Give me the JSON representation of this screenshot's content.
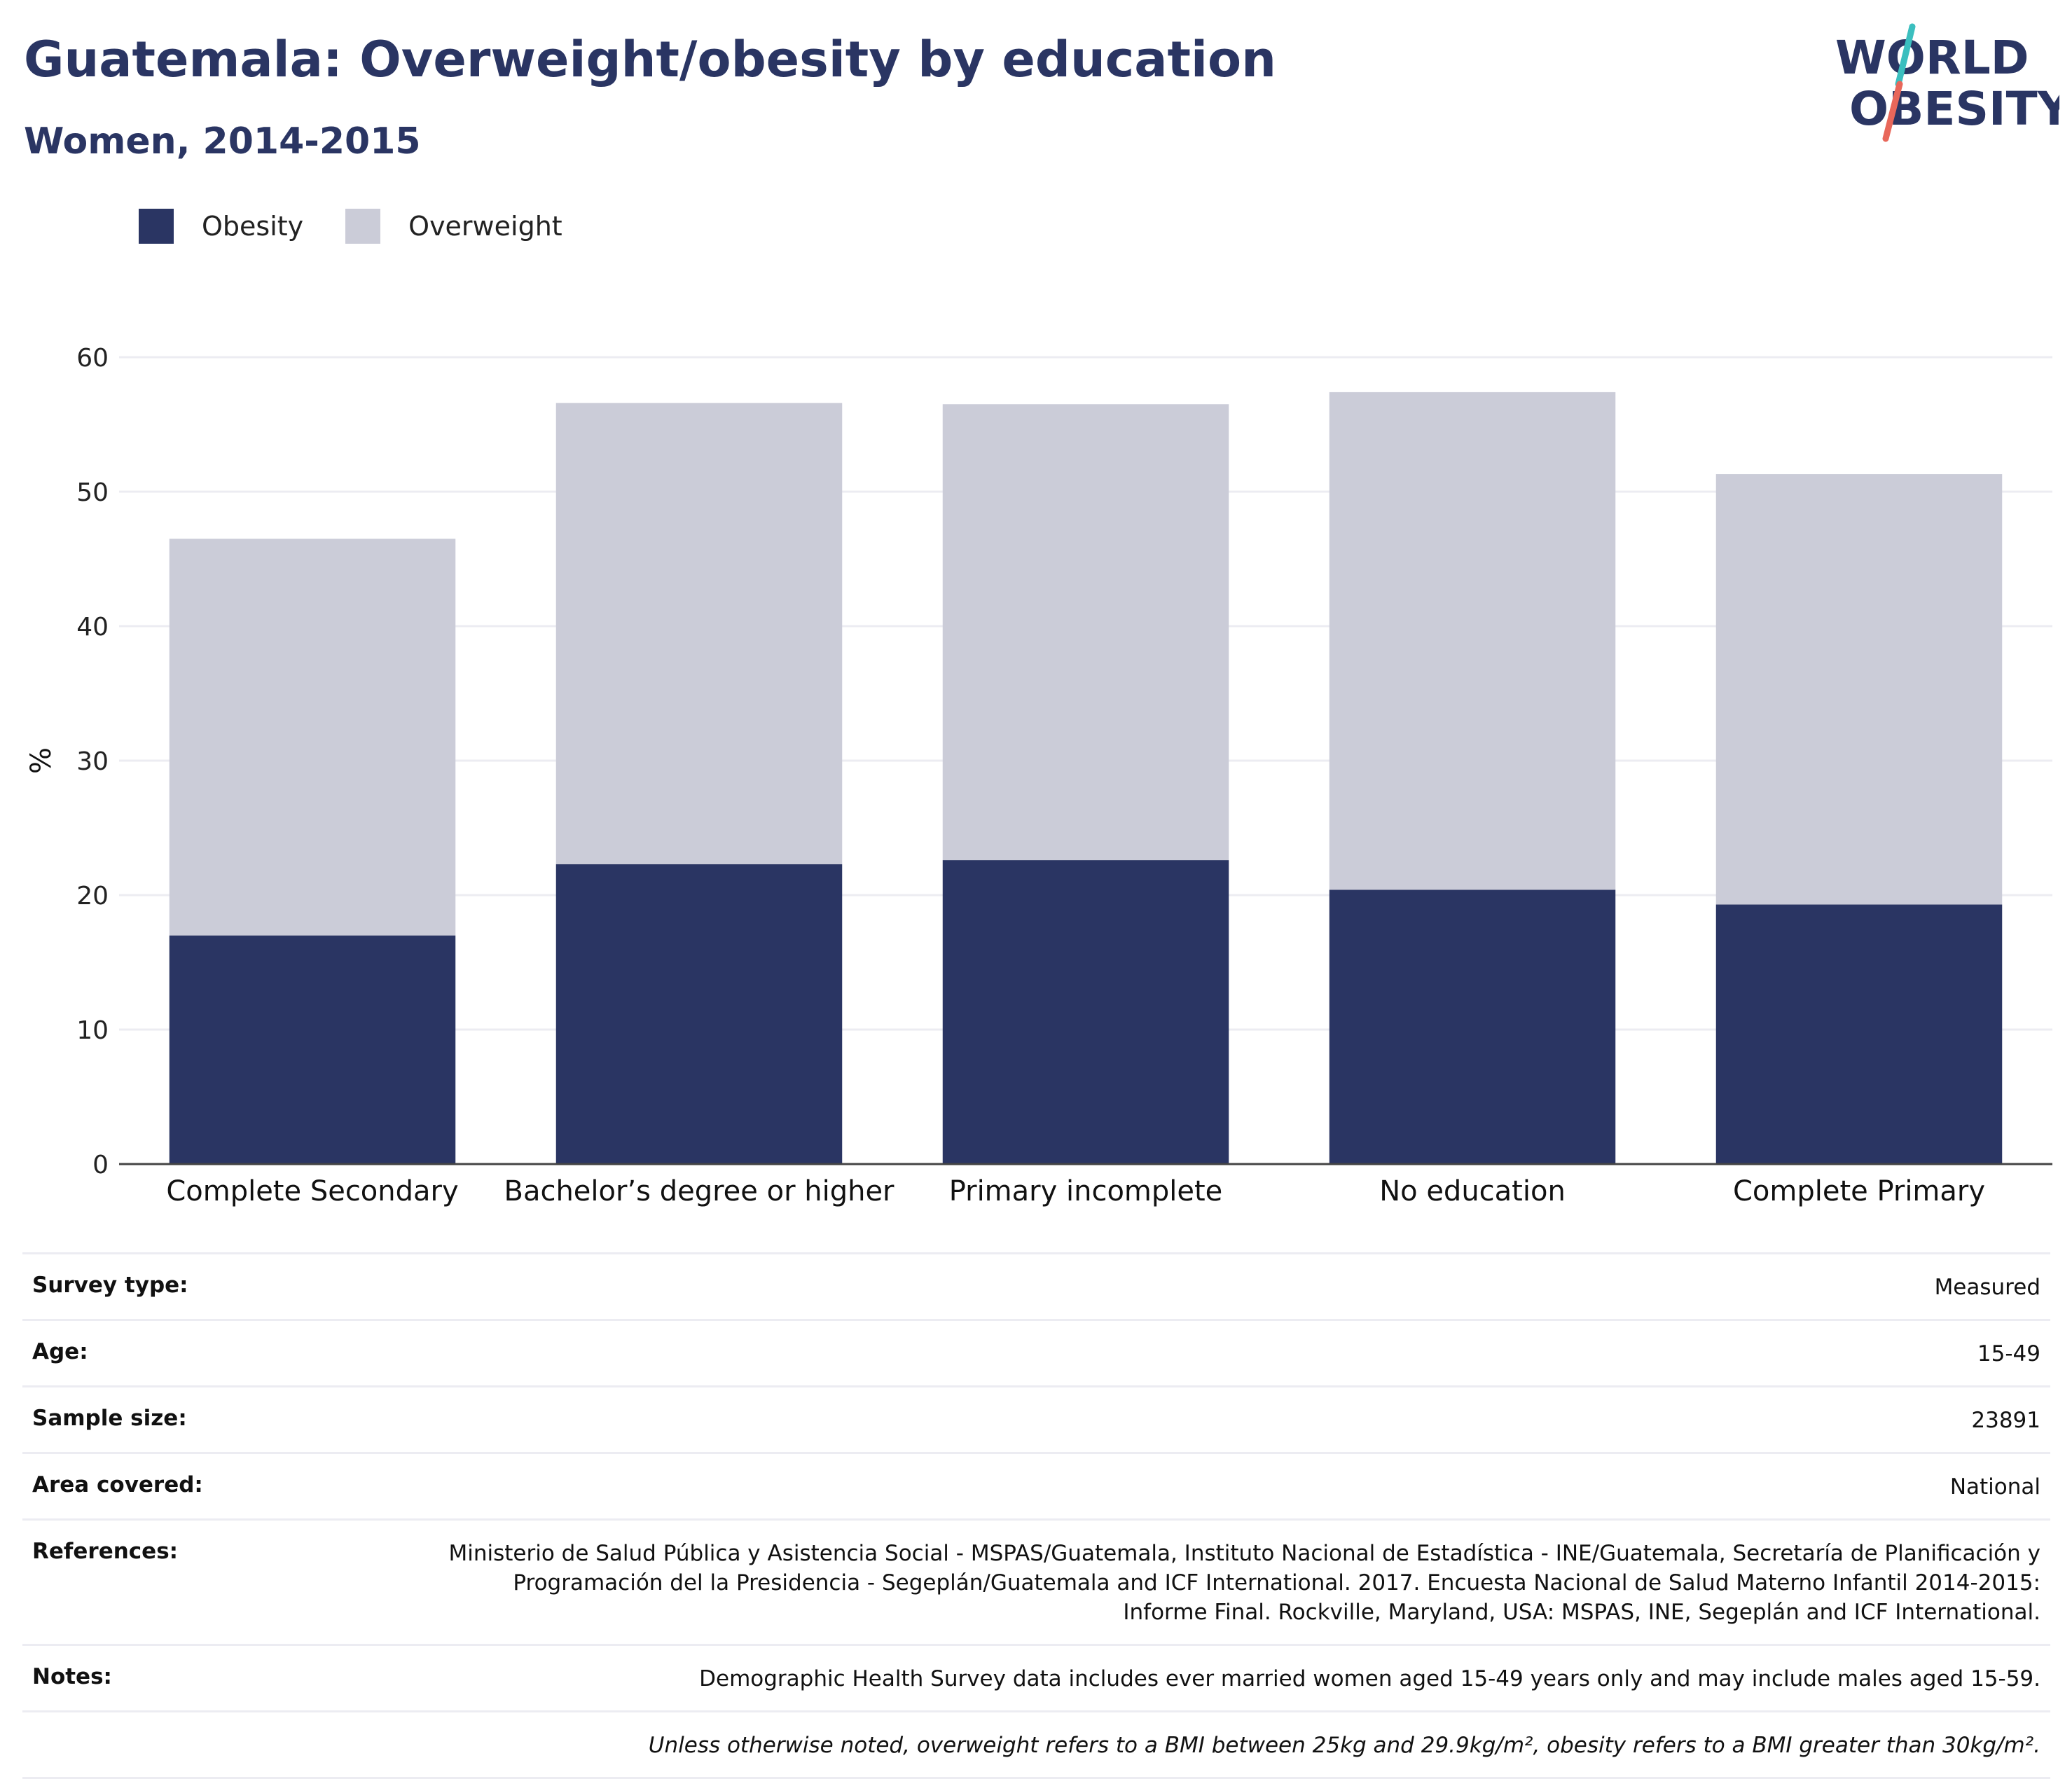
{
  "header": {
    "title": "Guatemala: Overweight/obesity by education",
    "subtitle": "Women, 2014-2015"
  },
  "logo": {
    "line1": "WORLD",
    "line2": "OBESITY",
    "colors": {
      "text": "#2a3563",
      "slash_top": "#3bbfbf",
      "slash_bottom": "#e8675a"
    }
  },
  "legend": [
    {
      "label": "Obesity",
      "color": "#2a3563"
    },
    {
      "label": "Overweight",
      "color": "#cbccd8"
    }
  ],
  "chart_data": {
    "type": "bar",
    "stacked": true,
    "categories": [
      "Complete Secondary",
      "Bachelor’s degree or higher",
      "Primary incomplete",
      "No education",
      "Complete Primary"
    ],
    "series": [
      {
        "name": "Obesity",
        "color": "#2a3563",
        "values": [
          17.0,
          22.3,
          22.6,
          20.4,
          19.3
        ]
      },
      {
        "name": "Overweight",
        "color": "#cbccd8",
        "values": [
          29.5,
          34.3,
          33.9,
          37.0,
          32.0
        ]
      }
    ],
    "ylabel": "%",
    "ylim": [
      0,
      60
    ],
    "yticks": [
      0,
      10,
      20,
      30,
      40,
      50,
      60
    ],
    "grid": true,
    "legend_position": "top-left"
  },
  "info": [
    {
      "key": "Survey type:",
      "value": "Measured"
    },
    {
      "key": "Age:",
      "value": "15-49"
    },
    {
      "key": "Sample size:",
      "value": "23891"
    },
    {
      "key": "Area covered:",
      "value": "National"
    },
    {
      "key": "References:",
      "value": "Ministerio de Salud Pública y Asistencia Social - MSPAS/Guatemala, Instituto Nacional de Estadística - INE/Guatemala, Secretaría de Planificación y Programación del la Presidencia - Segeplán/Guatemala and ICF International. 2017. Encuesta Nacional de Salud Materno Infantil 2014-2015: Informe Final. Rockville, Maryland, USA: MSPAS, INE, Segeplán and ICF International."
    },
    {
      "key": "Notes:",
      "value": "Demographic Health Survey data includes ever married women aged 15-49 years only and may include males aged 15-59."
    },
    {
      "key": "",
      "value": "Unless otherwise noted, overweight refers to a BMI between 25kg and 29.9kg/m², obesity refers to a BMI greater than 30kg/m²."
    }
  ]
}
